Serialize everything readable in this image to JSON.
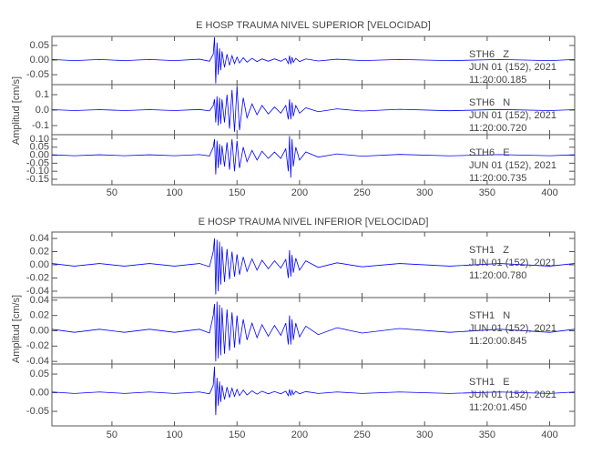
{
  "chart_data": [
    {
      "type": "line",
      "title": "E HOSP TRAUMA NIVEL SUPERIOR [VELOCIDAD]",
      "y_label": "Amplitud [cm/s]",
      "xlim": [
        2,
        420
      ],
      "xticks": [
        50,
        100,
        150,
        200,
        250,
        300,
        350,
        400
      ],
      "x": [
        2,
        20,
        40,
        60,
        80,
        100,
        120,
        128,
        131,
        132,
        133,
        134,
        135,
        136,
        137,
        138,
        140,
        142,
        144,
        146,
        148,
        150,
        152,
        155,
        158,
        162,
        166,
        170,
        175,
        180,
        185,
        189,
        191,
        192,
        193,
        194,
        195,
        197,
        200,
        205,
        215,
        230,
        250,
        280,
        320,
        360,
        400,
        420
      ],
      "panels": [
        {
          "annotation": [
            "STH6   Z",
            "JUN 01 (152), 2021",
            "11:20:00.185"
          ],
          "ylim": [
            -0.084,
            0.081
          ],
          "yticks": [
            0.05,
            {
              "value": 0,
              "label": "0.00"
            },
            -0.05
          ],
          "series": [
            {
              "color": "#0000ff",
              "values": [
                0.002,
                -0.002,
                0.002,
                -0.002,
                0.002,
                -0.002,
                0.003,
                -0.004,
                0.02,
                0.078,
                -0.08,
                0.06,
                -0.05,
                0.04,
                -0.035,
                0.03,
                -0.025,
                0.02,
                -0.018,
                0.015,
                -0.012,
                0.01,
                -0.01,
                0.008,
                -0.007,
                0.006,
                -0.005,
                0.004,
                -0.004,
                0.004,
                -0.004,
                0.005,
                -0.012,
                0.015,
                -0.014,
                0.01,
                -0.008,
                0.006,
                -0.005,
                0.004,
                -0.003,
                0.003,
                -0.002,
                0.002,
                -0.002,
                0.002,
                -0.002,
                0.002
              ]
            }
          ]
        },
        {
          "annotation": [
            "STH6   N",
            "JUN 01 (152), 2021",
            "11:20:00.720"
          ],
          "ylim": [
            -0.159,
            0.165
          ],
          "yticks": [
            0.1,
            {
              "value": 0,
              "label": "0.0"
            },
            -0.1
          ],
          "series": [
            {
              "color": "#0000ff",
              "values": [
                0.003,
                -0.003,
                0.003,
                -0.003,
                0.003,
                -0.003,
                0.004,
                -0.005,
                0.03,
                0.07,
                -0.08,
                0.09,
                -0.1,
                0.08,
                -0.09,
                0.07,
                -0.08,
                0.1,
                -0.12,
                0.13,
                -0.14,
                0.15,
                -0.13,
                0.08,
                -0.05,
                0.04,
                -0.03,
                0.03,
                -0.025,
                0.02,
                -0.02,
                0.03,
                -0.06,
                0.07,
                -0.06,
                0.05,
                -0.04,
                0.03,
                -0.02,
                0.015,
                -0.01,
                0.008,
                -0.006,
                0.005,
                -0.004,
                0.004,
                -0.003,
                0.003
              ]
            }
          ]
        },
        {
          "annotation": [
            "STH6   E",
            "JUN 01 (152), 2021",
            "11:20:00.735"
          ],
          "ylim": [
            -0.184,
            0.128
          ],
          "yticks": [
            {
              "value": 0.1,
              "label": "0.10"
            },
            0.05,
            {
              "value": 0,
              "label": "0.00"
            },
            -0.05,
            {
              "value": -0.1,
              "label": "-0.10"
            },
            -0.15
          ],
          "series": [
            {
              "color": "#0000ff",
              "values": [
                0.003,
                -0.003,
                0.003,
                -0.003,
                0.003,
                -0.003,
                0.004,
                -0.005,
                0.05,
                0.1,
                -0.12,
                0.09,
                -0.08,
                0.07,
                -0.06,
                0.06,
                -0.07,
                0.08,
                -0.09,
                0.1,
                -0.1,
                0.09,
                -0.08,
                0.05,
                -0.04,
                0.03,
                -0.03,
                0.025,
                -0.02,
                0.02,
                -0.02,
                0.04,
                -0.1,
                0.12,
                -0.14,
                0.1,
                -0.07,
                0.05,
                -0.03,
                0.02,
                -0.012,
                0.008,
                -0.006,
                0.005,
                -0.004,
                0.004,
                -0.003,
                0.003
              ]
            }
          ]
        }
      ]
    },
    {
      "type": "line",
      "title": "E HOSP TRAUMA NIVEL INFERIOR [VELOCIDAD]",
      "y_label": "Amplitud [cm/s]",
      "xlim": [
        2,
        420
      ],
      "xticks": [
        50,
        100,
        150,
        200,
        250,
        300,
        350,
        400
      ],
      "x": [
        2,
        20,
        40,
        60,
        80,
        100,
        120,
        128,
        131,
        132,
        133,
        134,
        135,
        136,
        137,
        138,
        140,
        142,
        144,
        146,
        148,
        150,
        152,
        155,
        158,
        162,
        166,
        170,
        175,
        180,
        185,
        189,
        191,
        192,
        193,
        194,
        195,
        197,
        200,
        205,
        215,
        230,
        250,
        280,
        320,
        360,
        400,
        420
      ],
      "panels": [
        {
          "annotation": [
            "STH1   Z",
            "JUN 01 (152), 2021",
            "11:20:00.780"
          ],
          "ylim": [
            -0.0497,
            0.0497
          ],
          "yticks": [
            0.04,
            0.02,
            {
              "value": 0,
              "label": "0.00"
            },
            -0.02,
            -0.04
          ],
          "series": [
            {
              "color": "#0000ff",
              "values": [
                0.002,
                -0.002,
                0.002,
                -0.002,
                0.002,
                -0.002,
                0.002,
                -0.003,
                0.02,
                0.04,
                -0.045,
                0.038,
                -0.04,
                0.035,
                -0.03,
                0.028,
                -0.026,
                0.024,
                -0.022,
                0.02,
                -0.018,
                0.016,
                -0.015,
                0.012,
                -0.01,
                0.009,
                -0.008,
                0.007,
                -0.006,
                0.006,
                -0.005,
                0.008,
                -0.02,
                0.022,
                -0.018,
                0.015,
                -0.012,
                0.01,
                -0.008,
                0.006,
                -0.004,
                0.003,
                -0.003,
                0.002,
                -0.002,
                0.002,
                -0.002,
                0.002
              ]
            }
          ]
        },
        {
          "annotation": [
            "STH1   N",
            "JUN 01 (152), 2021",
            "11:20:00.845"
          ],
          "ylim": [
            -0.0434,
            0.0434
          ],
          "yticks": [
            0.04,
            0.02,
            {
              "value": 0,
              "label": "0.00"
            },
            -0.02,
            -0.04
          ],
          "series": [
            {
              "color": "#0000ff",
              "values": [
                0.002,
                -0.002,
                0.002,
                -0.002,
                0.002,
                -0.002,
                0.002,
                -0.003,
                0.02,
                0.035,
                -0.04,
                0.038,
                -0.036,
                0.034,
                -0.032,
                0.03,
                -0.03,
                0.028,
                -0.026,
                0.024,
                -0.022,
                0.02,
                -0.018,
                0.015,
                -0.012,
                0.01,
                -0.009,
                0.008,
                -0.007,
                0.007,
                -0.006,
                0.01,
                -0.018,
                0.02,
                -0.018,
                0.015,
                -0.012,
                0.01,
                -0.008,
                0.006,
                -0.005,
                0.004,
                -0.003,
                0.003,
                -0.002,
                0.002,
                -0.002,
                0.002
              ]
            }
          ]
        },
        {
          "annotation": [
            "STH1   E",
            "JUN 01 (152), 2021",
            "11:20:01.450"
          ],
          "ylim": [
            -0.089,
            0.077
          ],
          "yticks": [
            0.05,
            {
              "value": 0,
              "label": "0.00"
            },
            -0.05
          ],
          "series": [
            {
              "color": "#0000ff",
              "values": [
                0.002,
                -0.002,
                0.002,
                -0.002,
                0.002,
                -0.002,
                0.002,
                -0.003,
                0.02,
                0.07,
                -0.06,
                0.04,
                -0.035,
                0.03,
                -0.025,
                0.02,
                -0.018,
                0.015,
                -0.013,
                0.012,
                -0.01,
                0.009,
                -0.008,
                0.007,
                -0.006,
                0.005,
                -0.004,
                0.004,
                -0.003,
                0.003,
                -0.003,
                0.004,
                -0.008,
                0.009,
                -0.008,
                0.006,
                -0.005,
                0.004,
                -0.003,
                0.003,
                -0.002,
                0.002,
                -0.002,
                0.002,
                -0.002,
                0.002,
                -0.002,
                0.002
              ]
            }
          ]
        }
      ]
    }
  ]
}
